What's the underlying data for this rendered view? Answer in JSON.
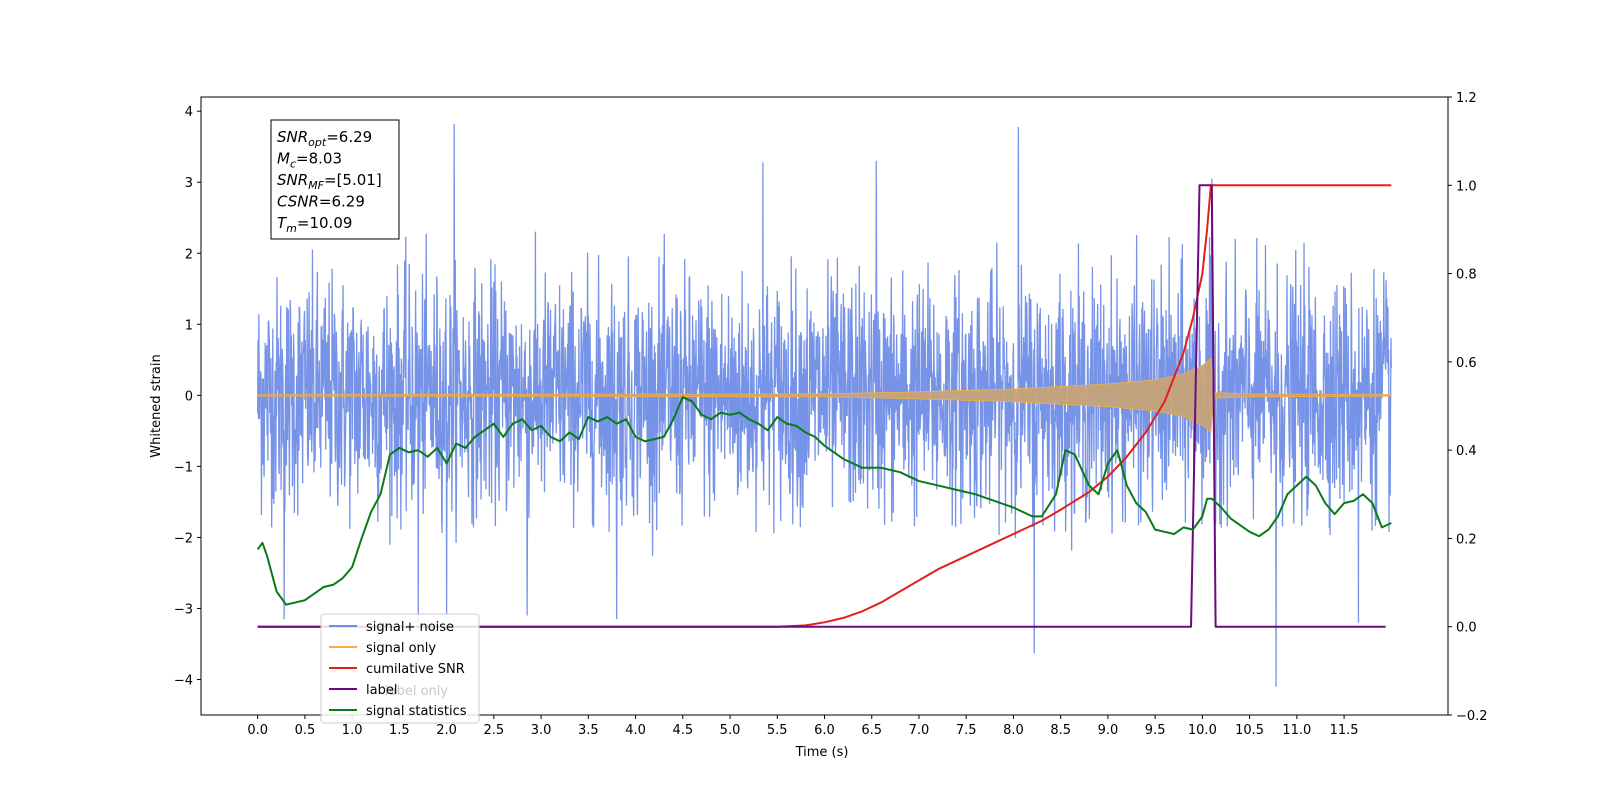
{
  "chart_data": {
    "type": "line",
    "xlabel": "Time (s)",
    "ylabel": "Whitened strain",
    "xlim": [
      -0.6,
      12.6
    ],
    "ylim": [
      -4.5,
      4.2
    ],
    "y2lim": [
      -0.2,
      1.2
    ],
    "x_ticks": [
      "0.0",
      "0.5",
      "1.0",
      "1.5",
      "2.0",
      "2.5",
      "3.0",
      "3.5",
      "4.0",
      "4.5",
      "5.0",
      "5.5",
      "6.0",
      "6.5",
      "7.0",
      "7.5",
      "8.0",
      "8.5",
      "9.0",
      "9.5",
      "10.0",
      "10.5",
      "11.0",
      "11.5"
    ],
    "y_ticks": [
      "4",
      "3",
      "2",
      "1",
      "0",
      "−1",
      "−2",
      "−3",
      "−4"
    ],
    "y2_ticks": [
      "1.2",
      "1.0",
      "0.8",
      "0.6",
      "0.4",
      "0.2",
      "0.0",
      "−0.2"
    ],
    "stats_box": {
      "lines": [
        {
          "base": "SNR",
          "sub": "opt",
          "value": "=6.29"
        },
        {
          "base": "M",
          "sub": "c",
          "value": "=8.03"
        },
        {
          "base": "SNR",
          "sub": "MF",
          "value": "=[5.01]"
        },
        {
          "base": "CSNR",
          "sub": "",
          "value": "=6.29"
        },
        {
          "base": "T",
          "sub": "m",
          "value": "=10.09"
        }
      ]
    },
    "legend": {
      "placement": "lower-left",
      "entries": [
        {
          "label": "signal+ noise",
          "color": "#6f8de6"
        },
        {
          "label": "signal only",
          "color": "#f5b041"
        },
        {
          "label": "cumilative SNR",
          "color": "#e0201b"
        },
        {
          "label": "label",
          "color": "#6b0a7a"
        },
        {
          "label": "signal statistics",
          "color": "#0a7a18"
        }
      ],
      "ghost_text": "label only"
    },
    "series": [
      {
        "name": "signal+ noise",
        "axis": "left",
        "color": "#6f8de6",
        "x_range": [
          0,
          12
        ],
        "band_upper": 2.1,
        "band_lower": -1.7,
        "spikes": [
          {
            "x": 2.08,
            "y": 3.82
          },
          {
            "x": 8.05,
            "y": 3.78
          },
          {
            "x": 10.1,
            "y": 3.05
          },
          {
            "x": 8.22,
            "y": -3.63
          },
          {
            "x": 10.78,
            "y": -4.1
          },
          {
            "x": 0.28,
            "y": -3.15
          },
          {
            "x": 1.7,
            "y": -3.2
          },
          {
            "x": 2.0,
            "y": -3.1
          },
          {
            "x": 3.8,
            "y": -3.15
          },
          {
            "x": 2.85,
            "y": -3.1
          },
          {
            "x": 11.65,
            "y": -3.2
          },
          {
            "x": 6.55,
            "y": 3.3
          },
          {
            "x": 5.35,
            "y": 3.28
          }
        ]
      },
      {
        "name": "signal only",
        "axis": "left",
        "color": "#f5b041",
        "envelope": [
          [
            0.0,
            0.01
          ],
          [
            6.0,
            0.02
          ],
          [
            7.0,
            0.05
          ],
          [
            8.0,
            0.09
          ],
          [
            9.0,
            0.16
          ],
          [
            9.5,
            0.22
          ],
          [
            9.8,
            0.3
          ],
          [
            10.0,
            0.42
          ],
          [
            10.09,
            0.52
          ],
          [
            10.12,
            0.04
          ],
          [
            10.5,
            0.02
          ],
          [
            12.0,
            0.01
          ]
        ]
      },
      {
        "name": "cumilative SNR",
        "axis": "right",
        "color": "#e0201b",
        "points": [
          [
            0.0,
            0.0
          ],
          [
            5.5,
            0.0
          ],
          [
            5.8,
            0.003
          ],
          [
            6.0,
            0.01
          ],
          [
            6.2,
            0.02
          ],
          [
            6.4,
            0.035
          ],
          [
            6.6,
            0.055
          ],
          [
            6.8,
            0.08
          ],
          [
            7.0,
            0.105
          ],
          [
            7.2,
            0.13
          ],
          [
            7.5,
            0.16
          ],
          [
            7.8,
            0.19
          ],
          [
            8.0,
            0.21
          ],
          [
            8.3,
            0.24
          ],
          [
            8.5,
            0.265
          ],
          [
            8.8,
            0.305
          ],
          [
            9.0,
            0.34
          ],
          [
            9.2,
            0.385
          ],
          [
            9.4,
            0.44
          ],
          [
            9.6,
            0.51
          ],
          [
            9.8,
            0.62
          ],
          [
            9.9,
            0.7
          ],
          [
            10.0,
            0.8
          ],
          [
            10.05,
            0.9
          ],
          [
            10.09,
            1.0
          ],
          [
            12.0,
            1.0
          ]
        ]
      },
      {
        "name": "label",
        "axis": "right",
        "color": "#6b0a7a",
        "points": [
          [
            0.0,
            0.0
          ],
          [
            9.88,
            0.0
          ],
          [
            9.97,
            1.0
          ],
          [
            10.1,
            1.0
          ],
          [
            10.14,
            0.0
          ],
          [
            11.94,
            0.0
          ]
        ]
      },
      {
        "name": "signal statistics",
        "axis": "right",
        "color": "#0a7a18",
        "points": [
          [
            0.0,
            0.175
          ],
          [
            0.05,
            0.19
          ],
          [
            0.1,
            0.16
          ],
          [
            0.15,
            0.12
          ],
          [
            0.2,
            0.08
          ],
          [
            0.3,
            0.05
          ],
          [
            0.4,
            0.055
          ],
          [
            0.5,
            0.06
          ],
          [
            0.6,
            0.075
          ],
          [
            0.7,
            0.09
          ],
          [
            0.8,
            0.095
          ],
          [
            0.9,
            0.11
          ],
          [
            1.0,
            0.135
          ],
          [
            1.1,
            0.2
          ],
          [
            1.2,
            0.26
          ],
          [
            1.3,
            0.3
          ],
          [
            1.4,
            0.39
          ],
          [
            1.5,
            0.405
          ],
          [
            1.6,
            0.395
          ],
          [
            1.7,
            0.4
          ],
          [
            1.8,
            0.385
          ],
          [
            1.9,
            0.405
          ],
          [
            2.0,
            0.37
          ],
          [
            2.1,
            0.415
          ],
          [
            2.2,
            0.405
          ],
          [
            2.3,
            0.43
          ],
          [
            2.4,
            0.445
          ],
          [
            2.5,
            0.46
          ],
          [
            2.6,
            0.43
          ],
          [
            2.7,
            0.46
          ],
          [
            2.8,
            0.47
          ],
          [
            2.9,
            0.445
          ],
          [
            3.0,
            0.455
          ],
          [
            3.1,
            0.43
          ],
          [
            3.2,
            0.42
          ],
          [
            3.3,
            0.44
          ],
          [
            3.4,
            0.425
          ],
          [
            3.5,
            0.475
          ],
          [
            3.6,
            0.465
          ],
          [
            3.7,
            0.475
          ],
          [
            3.8,
            0.46
          ],
          [
            3.9,
            0.47
          ],
          [
            4.0,
            0.43
          ],
          [
            4.1,
            0.42
          ],
          [
            4.2,
            0.425
          ],
          [
            4.3,
            0.43
          ],
          [
            4.4,
            0.47
          ],
          [
            4.5,
            0.52
          ],
          [
            4.6,
            0.51
          ],
          [
            4.7,
            0.48
          ],
          [
            4.8,
            0.47
          ],
          [
            4.9,
            0.485
          ],
          [
            5.0,
            0.48
          ],
          [
            5.1,
            0.485
          ],
          [
            5.2,
            0.47
          ],
          [
            5.3,
            0.46
          ],
          [
            5.4,
            0.445
          ],
          [
            5.5,
            0.475
          ],
          [
            5.6,
            0.46
          ],
          [
            5.7,
            0.455
          ],
          [
            5.8,
            0.44
          ],
          [
            5.9,
            0.43
          ],
          [
            6.0,
            0.41
          ],
          [
            6.1,
            0.395
          ],
          [
            6.2,
            0.38
          ],
          [
            6.3,
            0.37
          ],
          [
            6.4,
            0.36
          ],
          [
            6.6,
            0.36
          ],
          [
            6.8,
            0.35
          ],
          [
            7.0,
            0.33
          ],
          [
            7.2,
            0.32
          ],
          [
            7.4,
            0.31
          ],
          [
            7.6,
            0.3
          ],
          [
            7.8,
            0.285
          ],
          [
            8.0,
            0.27
          ],
          [
            8.2,
            0.25
          ],
          [
            8.3,
            0.25
          ],
          [
            8.45,
            0.3
          ],
          [
            8.55,
            0.4
          ],
          [
            8.65,
            0.39
          ],
          [
            8.8,
            0.32
          ],
          [
            8.9,
            0.3
          ],
          [
            9.0,
            0.37
          ],
          [
            9.1,
            0.4
          ],
          [
            9.2,
            0.32
          ],
          [
            9.3,
            0.28
          ],
          [
            9.4,
            0.26
          ],
          [
            9.5,
            0.22
          ],
          [
            9.6,
            0.215
          ],
          [
            9.7,
            0.21
          ],
          [
            9.8,
            0.225
          ],
          [
            9.9,
            0.22
          ],
          [
            10.0,
            0.25
          ],
          [
            10.05,
            0.29
          ],
          [
            10.1,
            0.29
          ],
          [
            10.2,
            0.27
          ],
          [
            10.3,
            0.245
          ],
          [
            10.4,
            0.23
          ],
          [
            10.5,
            0.215
          ],
          [
            10.6,
            0.205
          ],
          [
            10.7,
            0.22
          ],
          [
            10.8,
            0.25
          ],
          [
            10.9,
            0.3
          ],
          [
            11.0,
            0.32
          ],
          [
            11.1,
            0.34
          ],
          [
            11.2,
            0.32
          ],
          [
            11.3,
            0.28
          ],
          [
            11.4,
            0.255
          ],
          [
            11.5,
            0.28
          ],
          [
            11.6,
            0.285
          ],
          [
            11.7,
            0.3
          ],
          [
            11.8,
            0.28
          ],
          [
            11.9,
            0.225
          ],
          [
            12.0,
            0.235
          ]
        ]
      }
    ]
  }
}
